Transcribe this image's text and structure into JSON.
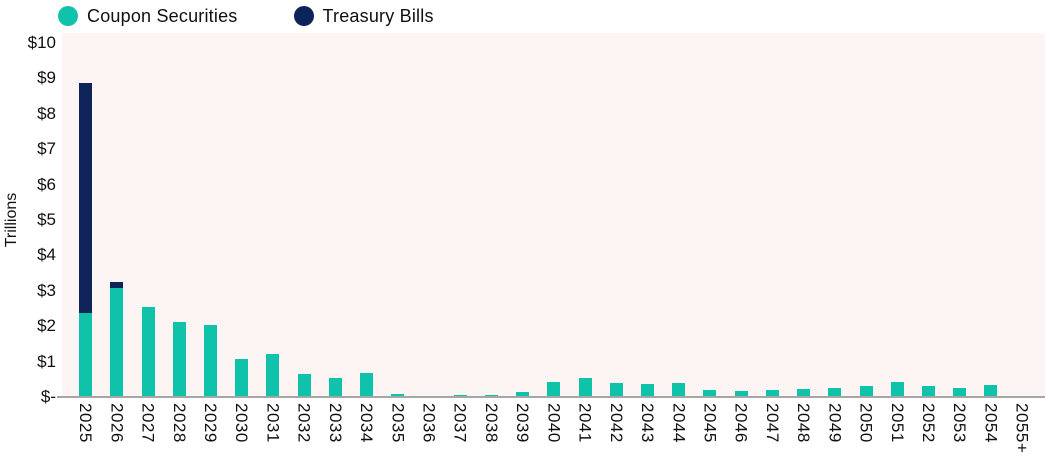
{
  "legend": {
    "items": [
      {
        "label": "Coupon Securities",
        "color": "#0FC3AB"
      },
      {
        "label": "Treasury Bills",
        "color": "#0E2357"
      }
    ]
  },
  "chart_data": {
    "type": "bar",
    "stacked": true,
    "title": "",
    "ylabel": "Trillions",
    "xlabel": "",
    "ylim": [
      0,
      10
    ],
    "yticks": [
      "$10",
      "$9",
      "$8",
      "$7",
      "$6",
      "$5",
      "$4",
      "$3",
      "$2",
      "$1",
      "$-"
    ],
    "grid": false,
    "legend_position": "top-left",
    "plot_bg": "#FCF5F4",
    "axis_line_color": "#A6A6A6",
    "categories": [
      "2025",
      "2026",
      "2027",
      "2028",
      "2029",
      "2030",
      "2031",
      "2032",
      "2033",
      "2034",
      "2035",
      "2036",
      "2037",
      "2038",
      "2039",
      "2040",
      "2041",
      "2042",
      "2043",
      "2044",
      "2045",
      "2046",
      "2047",
      "2048",
      "2049",
      "2050",
      "2051",
      "2052",
      "2053",
      "2054",
      "2055+"
    ],
    "series": [
      {
        "name": "Coupon Securities",
        "color": "#0FC3AB",
        "values": [
          2.35,
          3.05,
          2.5,
          2.1,
          2.0,
          1.05,
          1.2,
          0.62,
          0.5,
          0.64,
          0.05,
          0.0,
          0.03,
          0.03,
          0.12,
          0.4,
          0.5,
          0.36,
          0.34,
          0.36,
          0.17,
          0.15,
          0.17,
          0.2,
          0.22,
          0.29,
          0.39,
          0.29,
          0.24,
          0.3,
          0.0
        ]
      },
      {
        "name": "Treasury Bills",
        "color": "#0E2357",
        "values": [
          6.5,
          0.17,
          0,
          0,
          0,
          0,
          0,
          0,
          0,
          0,
          0,
          0,
          0,
          0,
          0,
          0,
          0,
          0,
          0,
          0,
          0,
          0,
          0,
          0,
          0,
          0,
          0,
          0,
          0,
          0,
          0
        ]
      }
    ]
  }
}
